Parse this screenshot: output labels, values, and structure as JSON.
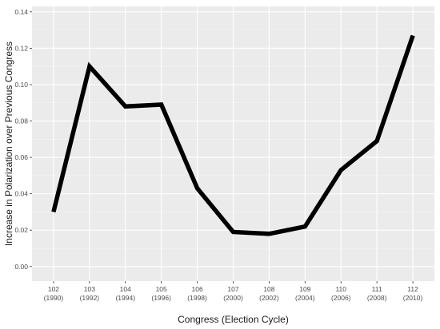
{
  "chart_data": {
    "type": "line",
    "title": "",
    "xlabel": "Congress (Election Cycle)",
    "ylabel": "Increase in Polarization over Previous Congress",
    "ylim": [
      -0.008,
      0.143
    ],
    "yticks": [
      "0.00",
      "0.02",
      "0.04",
      "0.06",
      "0.08",
      "0.10",
      "0.12",
      "0.14"
    ],
    "categories": [
      {
        "congress": "102",
        "year": "(1990)"
      },
      {
        "congress": "103",
        "year": "(1992)"
      },
      {
        "congress": "104",
        "year": "(1994)"
      },
      {
        "congress": "105",
        "year": "(1996)"
      },
      {
        "congress": "106",
        "year": "(1998)"
      },
      {
        "congress": "107",
        "year": "(2000)"
      },
      {
        "congress": "108",
        "year": "(2002)"
      },
      {
        "congress": "109",
        "year": "(2004)"
      },
      {
        "congress": "110",
        "year": "(2006)"
      },
      {
        "congress": "111",
        "year": "(2008)"
      },
      {
        "congress": "112",
        "year": "(2010)"
      }
    ],
    "series": [
      {
        "values": [
          0.03,
          0.11,
          0.088,
          0.089,
          0.043,
          0.019,
          0.018,
          0.022,
          0.053,
          0.069,
          0.127
        ]
      }
    ],
    "grid": true,
    "legend": "none",
    "colors": {
      "panel": "#ebebeb",
      "grid_major": "#ffffff",
      "grid_minor": "#f5f5f5",
      "line": "#000000"
    }
  }
}
